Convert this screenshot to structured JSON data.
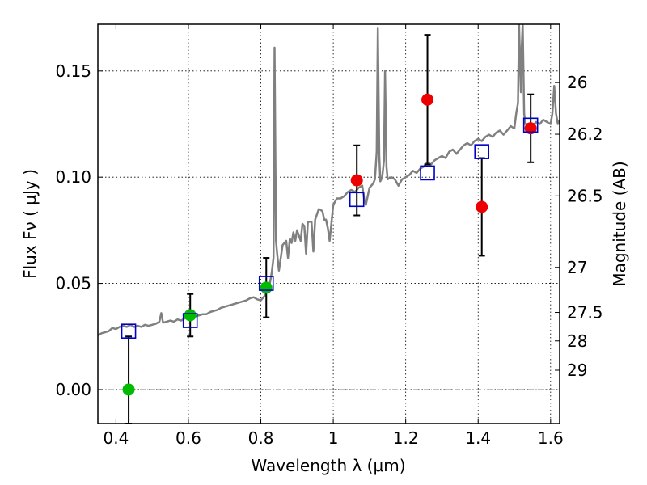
{
  "chart_data": {
    "type": "scatter",
    "xlabel": "Wavelength  λ (μm)",
    "ylabel": "Flux  Fν  ( μJy )",
    "ylabel_right": "Magnitude (AB)",
    "xlim": [
      0.35,
      1.625
    ],
    "ylim": [
      -0.016,
      0.172
    ],
    "grid": true,
    "x_ticks": [
      0.4,
      0.6,
      0.8,
      1.0,
      1.2,
      1.4,
      1.6
    ],
    "x_tick_labels": [
      "0.4",
      "0.6",
      "0.8",
      "1",
      "1.2",
      "1.4",
      "1.6"
    ],
    "y_ticks": [
      0.0,
      0.05,
      0.1,
      0.15
    ],
    "y_tick_labels": [
      "0.00",
      "0.05",
      "0.10",
      "0.15"
    ],
    "right_ticks": [
      {
        "label": "26",
        "mag": 26.0
      },
      {
        "label": "26.2",
        "mag": 26.2
      },
      {
        "label": "26.5",
        "mag": 26.5
      },
      {
        "label": "27",
        "mag": 27.0
      },
      {
        "label": "27.5",
        "mag": 27.5
      },
      {
        "label": "28",
        "mag": 28.0
      },
      {
        "label": "29",
        "mag": 29.0
      }
    ],
    "colors": {
      "spectrum": "#808080",
      "green_points": "#00bb00",
      "red_points": "#ee0000",
      "model_squares": "#0000cc",
      "error_bars": "#000000",
      "zero_line": "#808080"
    },
    "series": [
      {
        "kind": "spectrum",
        "points": [
          [
            0.35,
            0.0255
          ],
          [
            0.36,
            0.0265
          ],
          [
            0.37,
            0.027
          ],
          [
            0.38,
            0.0275
          ],
          [
            0.39,
            0.029
          ],
          [
            0.4,
            0.0285
          ],
          [
            0.41,
            0.0295
          ],
          [
            0.42,
            0.03
          ],
          [
            0.43,
            0.0295
          ],
          [
            0.44,
            0.0305
          ],
          [
            0.45,
            0.0295
          ],
          [
            0.46,
            0.03
          ],
          [
            0.47,
            0.0295
          ],
          [
            0.48,
            0.0305
          ],
          [
            0.49,
            0.03
          ],
          [
            0.5,
            0.0305
          ],
          [
            0.51,
            0.031
          ],
          [
            0.52,
            0.032
          ],
          [
            0.525,
            0.036
          ],
          [
            0.53,
            0.0315
          ],
          [
            0.54,
            0.032
          ],
          [
            0.55,
            0.0325
          ],
          [
            0.56,
            0.032
          ],
          [
            0.57,
            0.033
          ],
          [
            0.58,
            0.0325
          ],
          [
            0.59,
            0.0335
          ],
          [
            0.6,
            0.034
          ],
          [
            0.61,
            0.0335
          ],
          [
            0.62,
            0.0345
          ],
          [
            0.63,
            0.035
          ],
          [
            0.64,
            0.0355
          ],
          [
            0.65,
            0.0355
          ],
          [
            0.66,
            0.0365
          ],
          [
            0.67,
            0.037
          ],
          [
            0.68,
            0.0375
          ],
          [
            0.69,
            0.0385
          ],
          [
            0.7,
            0.039
          ],
          [
            0.71,
            0.0395
          ],
          [
            0.72,
            0.04
          ],
          [
            0.73,
            0.0405
          ],
          [
            0.74,
            0.041
          ],
          [
            0.75,
            0.0415
          ],
          [
            0.76,
            0.042
          ],
          [
            0.77,
            0.043
          ],
          [
            0.78,
            0.0435
          ],
          [
            0.79,
            0.0425
          ],
          [
            0.8,
            0.042
          ],
          [
            0.81,
            0.044
          ],
          [
            0.815,
            0.0455
          ],
          [
            0.82,
            0.047
          ],
          [
            0.825,
            0.05
          ],
          [
            0.83,
            0.055
          ],
          [
            0.835,
            0.062
          ],
          [
            0.838,
            0.161
          ],
          [
            0.842,
            0.07
          ],
          [
            0.845,
            0.064
          ],
          [
            0.85,
            0.056
          ],
          [
            0.855,
            0.062
          ],
          [
            0.86,
            0.068
          ],
          [
            0.87,
            0.07
          ],
          [
            0.875,
            0.062
          ],
          [
            0.88,
            0.071
          ],
          [
            0.885,
            0.069
          ],
          [
            0.89,
            0.074
          ],
          [
            0.895,
            0.07
          ],
          [
            0.9,
            0.075
          ],
          [
            0.91,
            0.07
          ],
          [
            0.915,
            0.078
          ],
          [
            0.92,
            0.077
          ],
          [
            0.925,
            0.064
          ],
          [
            0.93,
            0.079
          ],
          [
            0.94,
            0.079
          ],
          [
            0.945,
            0.065
          ],
          [
            0.95,
            0.08
          ],
          [
            0.96,
            0.085
          ],
          [
            0.97,
            0.084
          ],
          [
            0.975,
            0.08
          ],
          [
            0.98,
            0.08
          ],
          [
            0.985,
            0.076
          ],
          [
            0.99,
            0.07
          ],
          [
            1.0,
            0.087
          ],
          [
            1.01,
            0.09
          ],
          [
            1.02,
            0.09
          ],
          [
            1.03,
            0.091
          ],
          [
            1.04,
            0.093
          ],
          [
            1.05,
            0.094
          ],
          [
            1.06,
            0.093
          ],
          [
            1.07,
            0.095
          ],
          [
            1.08,
            0.096
          ],
          [
            1.085,
            0.09
          ],
          [
            1.09,
            0.087
          ],
          [
            1.1,
            0.095
          ],
          [
            1.11,
            0.097
          ],
          [
            1.115,
            0.099
          ],
          [
            1.12,
            0.112
          ],
          [
            1.123,
            0.17
          ],
          [
            1.127,
            0.11
          ],
          [
            1.13,
            0.098
          ],
          [
            1.135,
            0.1
          ],
          [
            1.14,
            0.108
          ],
          [
            1.143,
            0.15
          ],
          [
            1.147,
            0.105
          ],
          [
            1.15,
            0.099
          ],
          [
            1.16,
            0.1
          ],
          [
            1.17,
            0.099
          ],
          [
            1.18,
            0.096
          ],
          [
            1.19,
            0.099
          ],
          [
            1.2,
            0.1
          ],
          [
            1.21,
            0.101
          ],
          [
            1.22,
            0.103
          ],
          [
            1.23,
            0.102
          ],
          [
            1.24,
            0.104
          ],
          [
            1.25,
            0.105
          ],
          [
            1.26,
            0.107
          ],
          [
            1.27,
            0.106
          ],
          [
            1.28,
            0.108
          ],
          [
            1.29,
            0.109
          ],
          [
            1.3,
            0.11
          ],
          [
            1.31,
            0.109
          ],
          [
            1.32,
            0.112
          ],
          [
            1.33,
            0.113
          ],
          [
            1.34,
            0.111
          ],
          [
            1.35,
            0.113
          ],
          [
            1.36,
            0.115
          ],
          [
            1.37,
            0.116
          ],
          [
            1.38,
            0.115
          ],
          [
            1.39,
            0.117
          ],
          [
            1.4,
            0.118
          ],
          [
            1.41,
            0.117
          ],
          [
            1.42,
            0.119
          ],
          [
            1.43,
            0.12
          ],
          [
            1.44,
            0.119
          ],
          [
            1.45,
            0.121
          ],
          [
            1.46,
            0.122
          ],
          [
            1.47,
            0.12
          ],
          [
            1.48,
            0.122
          ],
          [
            1.49,
            0.124
          ],
          [
            1.5,
            0.123
          ],
          [
            1.505,
            0.13
          ],
          [
            1.51,
            0.135
          ],
          [
            1.513,
            0.172
          ],
          [
            1.518,
            0.14
          ],
          [
            1.52,
            0.16
          ],
          [
            1.523,
            0.172
          ],
          [
            1.527,
            0.13
          ],
          [
            1.53,
            0.125
          ],
          [
            1.54,
            0.125
          ],
          [
            1.55,
            0.124
          ],
          [
            1.56,
            0.126
          ],
          [
            1.57,
            0.125
          ],
          [
            1.58,
            0.127
          ],
          [
            1.59,
            0.126
          ],
          [
            1.6,
            0.125
          ],
          [
            1.605,
            0.13
          ],
          [
            1.61,
            0.143
          ],
          [
            1.615,
            0.13
          ],
          [
            1.62,
            0.125
          ],
          [
            1.625,
            0.127
          ]
        ]
      },
      {
        "kind": "green_points",
        "points": [
          {
            "x": 0.435,
            "y": 0.0,
            "err_low": 0.016,
            "err_high": 0.025
          },
          {
            "x": 0.605,
            "y": 0.035,
            "err_low": 0.01,
            "err_high": 0.01
          },
          {
            "x": 0.815,
            "y": 0.048,
            "err_low": 0.014,
            "err_high": 0.014
          }
        ]
      },
      {
        "kind": "red_points",
        "points": [
          {
            "x": 1.065,
            "y": 0.0985,
            "err_low": 0.0165,
            "err_high": 0.0165
          },
          {
            "x": 1.26,
            "y": 0.1365,
            "err_low": 0.0305,
            "err_high": 0.0305
          },
          {
            "x": 1.41,
            "y": 0.086,
            "err_low": 0.023,
            "err_high": 0.023
          },
          {
            "x": 1.545,
            "y": 0.123,
            "err_low": 0.016,
            "err_high": 0.016
          }
        ]
      },
      {
        "kind": "model_squares",
        "points": [
          {
            "x": 0.435,
            "y": 0.0275
          },
          {
            "x": 0.605,
            "y": 0.0325
          },
          {
            "x": 0.815,
            "y": 0.05
          },
          {
            "x": 1.065,
            "y": 0.0895
          },
          {
            "x": 1.26,
            "y": 0.102
          },
          {
            "x": 1.41,
            "y": 0.112
          },
          {
            "x": 1.545,
            "y": 0.1245
          }
        ]
      }
    ]
  }
}
